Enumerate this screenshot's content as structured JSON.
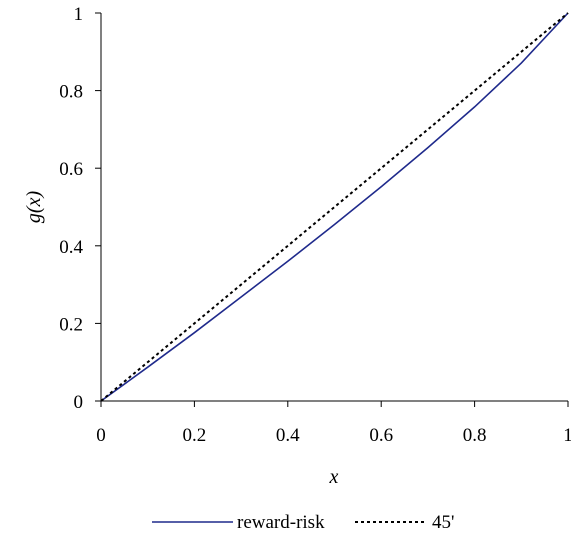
{
  "chart_data": {
    "type": "line",
    "title": "",
    "xlabel": "x",
    "ylabel": "g(x)",
    "xlim": [
      0,
      1
    ],
    "ylim": [
      0,
      1
    ],
    "x_ticks": [
      "0",
      "0.2",
      "0.4",
      "0.6",
      "0.8",
      "1"
    ],
    "y_ticks": [
      "0",
      "0.2",
      "0.4",
      "0.6",
      "0.8",
      "1"
    ],
    "grid": false,
    "legend_position": "bottom-center",
    "series": [
      {
        "name": "reward-risk",
        "style": "solid",
        "color": "#1f2a8c",
        "x": [
          0,
          0.1,
          0.2,
          0.3,
          0.4,
          0.5,
          0.6,
          0.7,
          0.8,
          0.9,
          1.0
        ],
        "y": [
          0,
          0.087,
          0.176,
          0.268,
          0.36,
          0.455,
          0.552,
          0.653,
          0.758,
          0.871,
          1.0
        ]
      },
      {
        "name": "45'",
        "style": "dotted",
        "color": "#000000",
        "x": [
          0,
          1
        ],
        "y": [
          0,
          1
        ]
      }
    ]
  }
}
